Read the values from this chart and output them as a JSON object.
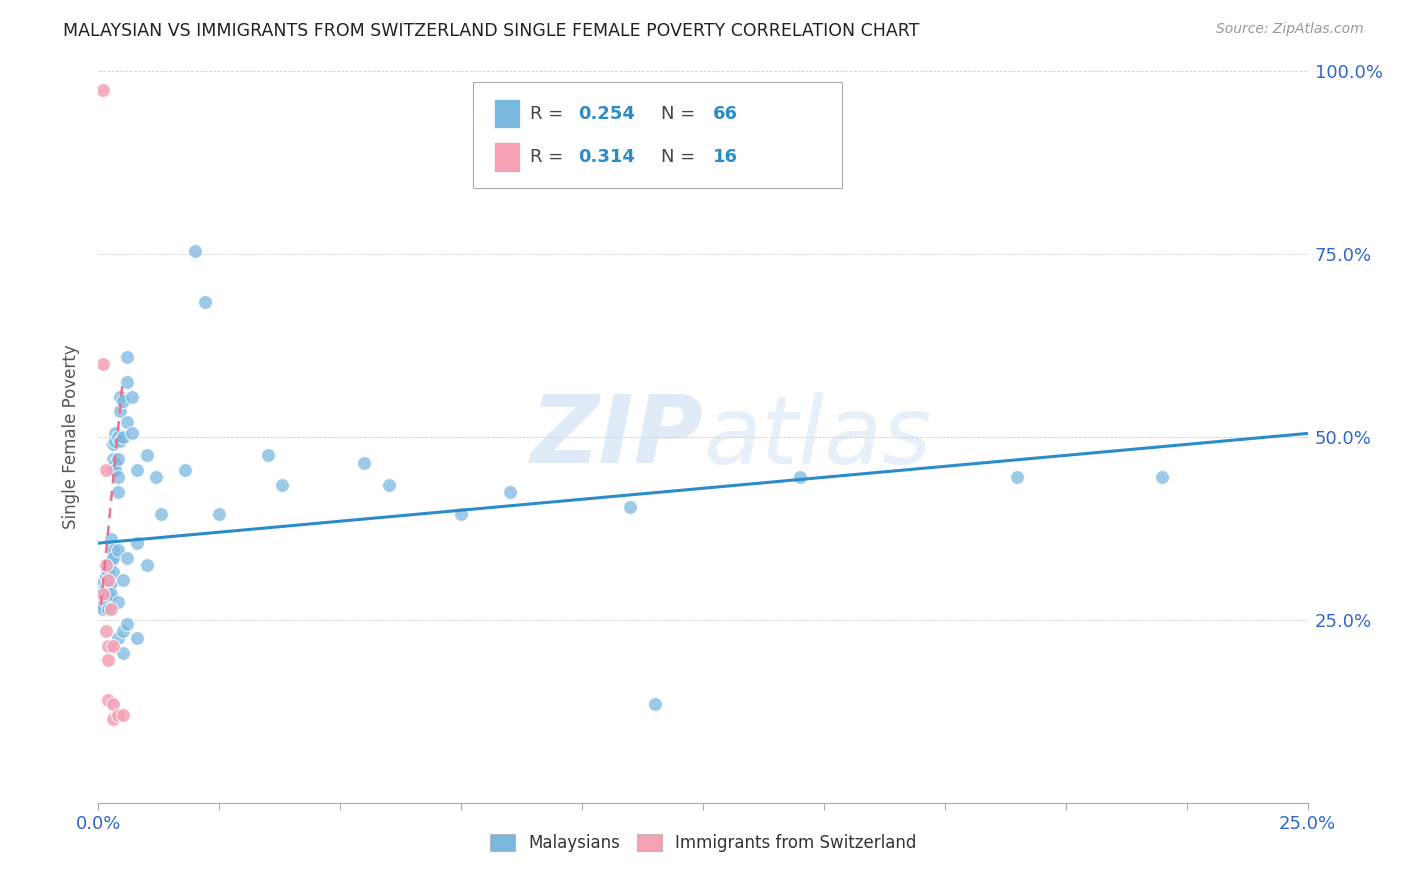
{
  "title": "MALAYSIAN VS IMMIGRANTS FROM SWITZERLAND SINGLE FEMALE POVERTY CORRELATION CHART",
  "source": "Source: ZipAtlas.com",
  "ylabel": "Single Female Poverty",
  "xlim": [
    0.0,
    0.25
  ],
  "ylim": [
    0.0,
    1.0
  ],
  "xticks": [
    0.0,
    0.025,
    0.05,
    0.075,
    0.1,
    0.125,
    0.15,
    0.175,
    0.2,
    0.225,
    0.25
  ],
  "yticks": [
    0.0,
    0.25,
    0.5,
    0.75,
    1.0
  ],
  "right_ytick_labels": [
    "",
    "25.0%",
    "50.0%",
    "75.0%",
    "100.0%"
  ],
  "malaysian_color": "#7ab8e0",
  "swiss_color": "#f4a0b5",
  "trendline_blue_color": "#2b8cca",
  "trendline_pink_color": "#e87090",
  "watermark_zip": "#c8dff5",
  "watermark_atlas": "#c8dff5",
  "malaysian_data": [
    [
      0.001,
      0.3
    ],
    [
      0.001,
      0.29
    ],
    [
      0.001,
      0.28
    ],
    [
      0.001,
      0.27
    ],
    [
      0.001,
      0.265
    ],
    [
      0.0015,
      0.31
    ],
    [
      0.0015,
      0.295
    ],
    [
      0.0015,
      0.28
    ],
    [
      0.0015,
      0.275
    ],
    [
      0.002,
      0.315
    ],
    [
      0.002,
      0.3
    ],
    [
      0.002,
      0.285
    ],
    [
      0.002,
      0.275
    ],
    [
      0.002,
      0.265
    ],
    [
      0.0025,
      0.36
    ],
    [
      0.0025,
      0.33
    ],
    [
      0.0025,
      0.3
    ],
    [
      0.0025,
      0.285
    ],
    [
      0.003,
      0.49
    ],
    [
      0.003,
      0.47
    ],
    [
      0.003,
      0.455
    ],
    [
      0.003,
      0.345
    ],
    [
      0.003,
      0.335
    ],
    [
      0.003,
      0.315
    ],
    [
      0.0035,
      0.505
    ],
    [
      0.0035,
      0.495
    ],
    [
      0.0035,
      0.465
    ],
    [
      0.0035,
      0.455
    ],
    [
      0.004,
      0.5
    ],
    [
      0.004,
      0.47
    ],
    [
      0.004,
      0.445
    ],
    [
      0.004,
      0.425
    ],
    [
      0.004,
      0.345
    ],
    [
      0.004,
      0.275
    ],
    [
      0.004,
      0.225
    ],
    [
      0.0045,
      0.555
    ],
    [
      0.0045,
      0.535
    ],
    [
      0.0045,
      0.495
    ],
    [
      0.005,
      0.55
    ],
    [
      0.005,
      0.5
    ],
    [
      0.005,
      0.305
    ],
    [
      0.005,
      0.235
    ],
    [
      0.005,
      0.205
    ],
    [
      0.006,
      0.61
    ],
    [
      0.006,
      0.575
    ],
    [
      0.006,
      0.52
    ],
    [
      0.006,
      0.335
    ],
    [
      0.006,
      0.245
    ],
    [
      0.007,
      0.555
    ],
    [
      0.007,
      0.505
    ],
    [
      0.008,
      0.455
    ],
    [
      0.008,
      0.355
    ],
    [
      0.008,
      0.225
    ],
    [
      0.01,
      0.475
    ],
    [
      0.01,
      0.325
    ],
    [
      0.012,
      0.445
    ],
    [
      0.013,
      0.395
    ],
    [
      0.018,
      0.455
    ],
    [
      0.02,
      0.755
    ],
    [
      0.022,
      0.685
    ],
    [
      0.025,
      0.395
    ],
    [
      0.035,
      0.475
    ],
    [
      0.038,
      0.435
    ],
    [
      0.055,
      0.465
    ],
    [
      0.06,
      0.435
    ],
    [
      0.075,
      0.395
    ],
    [
      0.085,
      0.425
    ],
    [
      0.11,
      0.405
    ],
    [
      0.115,
      0.135
    ],
    [
      0.145,
      0.445
    ],
    [
      0.19,
      0.445
    ],
    [
      0.22,
      0.445
    ]
  ],
  "swiss_data": [
    [
      0.001,
      0.975
    ],
    [
      0.001,
      0.6
    ],
    [
      0.001,
      0.285
    ],
    [
      0.0015,
      0.455
    ],
    [
      0.0015,
      0.325
    ],
    [
      0.0015,
      0.235
    ],
    [
      0.002,
      0.305
    ],
    [
      0.002,
      0.215
    ],
    [
      0.002,
      0.195
    ],
    [
      0.002,
      0.14
    ],
    [
      0.0025,
      0.265
    ],
    [
      0.003,
      0.215
    ],
    [
      0.003,
      0.135
    ],
    [
      0.003,
      0.115
    ],
    [
      0.004,
      0.12
    ],
    [
      0.005,
      0.12
    ]
  ],
  "blue_trend_x": [
    0.0,
    0.25
  ],
  "blue_trend_y": [
    0.355,
    0.505
  ],
  "pink_trend_x": [
    0.0005,
    0.005
  ],
  "pink_trend_y": [
    0.27,
    0.575
  ]
}
